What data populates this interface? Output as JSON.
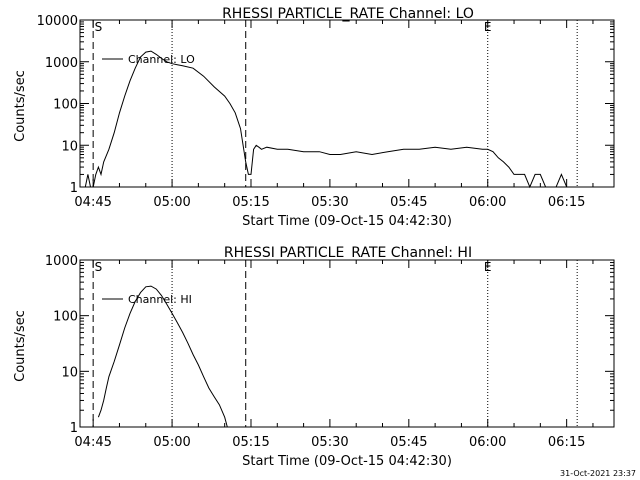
{
  "footer_timestamp": "31-Oct-2021 23:37",
  "chart_data": [
    {
      "type": "line",
      "title": "RHESSI PARTICLE_RATE Channel: LO",
      "xlabel": "Start Time (09-Oct-15 04:42:30)",
      "ylabel": "Counts/sec",
      "y_scale": "log",
      "xlim": [
        "04:42:30",
        "06:24:00"
      ],
      "ylim": [
        1,
        10000
      ],
      "xticks": [
        "04:45",
        "05:00",
        "05:15",
        "05:30",
        "05:45",
        "06:00",
        "06:15"
      ],
      "yticks": [
        "1",
        "10",
        "100",
        "1000",
        "10000"
      ],
      "legend": "Channel: LO",
      "markers": {
        "dashed": [
          "04:45",
          "05:14"
        ],
        "dotted": [
          "05:00",
          "06:00",
          "06:17"
        ],
        "labels": [
          {
            "text": "S",
            "at": "04:46"
          },
          {
            "text": "E",
            "at": "06:00"
          }
        ]
      },
      "series": [
        {
          "name": "Channel: LO",
          "x": [
            "04:43:30",
            "04:44:00",
            "04:44:30",
            "04:45:00",
            "04:45:30",
            "04:46:00",
            "04:46:30",
            "04:47:00",
            "04:48:00",
            "04:49:00",
            "04:50:00",
            "04:51:00",
            "04:52:00",
            "04:53:00",
            "04:54:00",
            "04:55:00",
            "04:56:00",
            "04:57:00",
            "04:58:00",
            "04:59:00",
            "05:00:00",
            "05:01:00",
            "05:02:00",
            "05:04:00",
            "05:06:00",
            "05:08:00",
            "05:10:00",
            "05:11:00",
            "05:12:00",
            "05:13:00",
            "05:13:30",
            "05:14:00",
            "05:14:30",
            "05:15:00",
            "05:15:30",
            "05:16:00",
            "05:16:30",
            "05:17:00",
            "05:18:00",
            "05:20:00",
            "05:22:00",
            "05:25:00",
            "05:28:00",
            "05:30:00",
            "05:32:00",
            "05:35:00",
            "05:38:00",
            "05:41:00",
            "05:44:00",
            "05:47:00",
            "05:50:00",
            "05:53:00",
            "05:56:00",
            "05:59:00",
            "06:00:00",
            "06:01:00",
            "06:02:00",
            "06:03:00",
            "06:04:00",
            "06:05:00",
            "06:06:00",
            "06:07:00",
            "06:08:00",
            "06:09:00",
            "06:10:00",
            "06:11:00",
            "06:12:00",
            "06:13:00",
            "06:14:00",
            "06:15:00",
            "06:16:00",
            "06:17:00"
          ],
          "y": [
            1,
            2,
            1,
            1,
            2,
            3,
            2,
            4,
            8,
            20,
            60,
            150,
            350,
            700,
            1300,
            1700,
            1800,
            1500,
            1200,
            1000,
            900,
            850,
            800,
            700,
            450,
            250,
            150,
            100,
            60,
            25,
            10,
            4,
            2,
            2,
            8,
            10,
            9,
            8,
            9,
            8,
            8,
            7,
            7,
            6,
            6,
            7,
            6,
            7,
            8,
            8,
            9,
            8,
            9,
            8,
            8,
            7,
            5,
            4,
            3,
            2,
            2,
            2,
            1,
            2,
            2,
            1,
            1,
            1,
            2,
            1,
            1,
            1
          ]
        }
      ]
    },
    {
      "type": "line",
      "title": "RHESSI PARTICLE_RATE Channel: HI",
      "xlabel": "Start Time (09-Oct-15 04:42:30)",
      "ylabel": "Counts/sec",
      "y_scale": "log",
      "xlim": [
        "04:42:30",
        "06:24:00"
      ],
      "ylim": [
        1,
        1000
      ],
      "xticks": [
        "04:45",
        "05:00",
        "05:15",
        "05:30",
        "05:45",
        "06:00",
        "06:15"
      ],
      "yticks": [
        "1",
        "10",
        "100",
        "1000"
      ],
      "legend": "Channel: HI",
      "markers": {
        "dashed": [
          "04:45",
          "05:14"
        ],
        "dotted": [
          "05:00",
          "06:00",
          "06:17"
        ],
        "labels": [
          {
            "text": "S",
            "at": "04:46"
          },
          {
            "text": "E",
            "at": "06:00"
          }
        ]
      },
      "series": [
        {
          "name": "Channel: HI",
          "x": [
            "04:46:00",
            "04:46:30",
            "04:47:00",
            "04:47:30",
            "04:48:00",
            "04:49:00",
            "04:50:00",
            "04:51:00",
            "04:52:00",
            "04:53:00",
            "04:54:00",
            "04:55:00",
            "04:56:00",
            "04:57:00",
            "04:58:00",
            "04:59:00",
            "05:00:00",
            "05:01:00",
            "05:02:00",
            "05:03:00",
            "05:04:00",
            "05:05:00",
            "05:06:00",
            "05:07:00",
            "05:08:00",
            "05:09:00",
            "05:10:00",
            "05:10:30"
          ],
          "y": [
            1.5,
            2,
            3,
            5,
            8,
            15,
            30,
            60,
            110,
            180,
            260,
            330,
            340,
            300,
            230,
            160,
            110,
            75,
            50,
            32,
            20,
            13,
            8,
            5,
            3.5,
            2.5,
            1.5,
            1
          ]
        }
      ]
    }
  ]
}
